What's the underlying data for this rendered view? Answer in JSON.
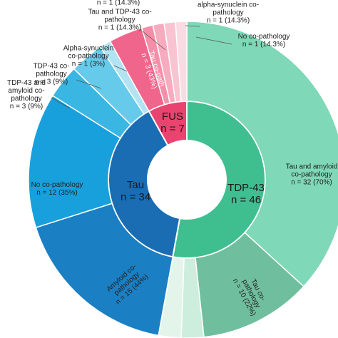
{
  "chart_data": {
    "type": "sunburst",
    "groups": [
      {
        "name": "TDP-43",
        "value": 46,
        "value_label": "n = 46",
        "color": "#3fbf90",
        "children": [
          {
            "name": "Tau and amyloid co-pathology",
            "value": 32,
            "value_label": "n = 32 (70%)",
            "color": "#7fd8b7"
          },
          {
            "name": "Tau co-pathology",
            "value": 10,
            "value_label": "n = 10 (22%)",
            "color": "#6fbf9e"
          },
          {
            "name": null,
            "value": 2,
            "value_label": null,
            "color": "#cdeedc"
          },
          {
            "name": null,
            "value": 2,
            "value_label": null,
            "color": "#e3f5ea"
          }
        ]
      },
      {
        "name": "Tau",
        "value": 34,
        "value_label": "n = 34",
        "color": "#1a6db3",
        "children": [
          {
            "name": "Amyloid co-pathology",
            "value": 15,
            "value_label": "n = 15 (44%)",
            "color": "#1b7fc3"
          },
          {
            "name": "No co-pathology",
            "value": 12,
            "value_label": "n = 12 (35%)",
            "color": "#17a0dc"
          },
          {
            "name": "TDP-43 and amyloid co-pathology",
            "value": 3,
            "value_label": "n = 3 (9%)",
            "color": "#3ab6e2"
          },
          {
            "name": "TDP-43 co-pathology",
            "value": 3,
            "value_label": "n = 3 (9%)",
            "color": "#66cbea"
          },
          {
            "name": "Alpha-synuclein co-pathology",
            "value": 1,
            "value_label": "n = 1 (3%)",
            "color": "#b3e3f2"
          }
        ]
      },
      {
        "name": "FUS",
        "value": 7,
        "value_label": "n = 7",
        "color": "#e8446f",
        "children": [
          {
            "name": "Tau co-path",
            "value": 3,
            "value_label": "n = 3 (43%)",
            "color": "#f0658b"
          },
          {
            "name": "Tau and TDP-43 co-pathology",
            "value": 1,
            "value_label": "n = 1 (14.3%)",
            "color": "#f48fa9"
          },
          {
            "name": null,
            "value": 1,
            "value_label": "n = 1 (14.3%)",
            "color": "#f7abbe"
          },
          {
            "name": "alpha-synuclein co-pathology",
            "value": 1,
            "value_label": "n = 1 (14.3%)",
            "color": "#f9c4d1"
          },
          {
            "name": "No co-pathology",
            "value": 1,
            "value_label": "n = 1 (14.3%)",
            "color": "#fbdbe3"
          }
        ]
      }
    ]
  }
}
